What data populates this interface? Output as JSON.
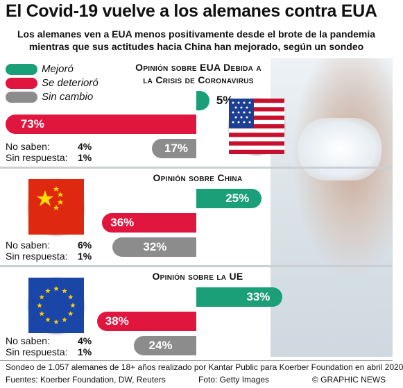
{
  "header": {
    "title": "El Covid-19 vuelve a los alemanes contra EUA",
    "subtitle_line1": "Los alemanes ven a EUA menos positivamente desde el brote de la pandemia",
    "subtitle_line2": "mientras que sus actitudes hacia China han mejorado, según un sondeo"
  },
  "legend": {
    "improved": "Mejoró",
    "worsened": "Se deterioró",
    "unchanged": "Sin cambio"
  },
  "colors": {
    "improved": "#1a9f78",
    "worsened": "#e0163f",
    "unchanged": "#8c8c8c"
  },
  "no_answer_labels": {
    "dont_know": "No saben:",
    "no_response": "Sin respuesta:"
  },
  "chart_data": [
    {
      "type": "bar",
      "title": "Opinión sobre EUA Debida a la Crisis de Coronavirus",
      "title_line1": "Opinión sobre EUA Debida a",
      "title_line2": "la Crisis de Coronavirus",
      "series": [
        {
          "name": "Mejoró",
          "value": 5,
          "label": "5%"
        },
        {
          "name": "Se deterioró",
          "value": 73,
          "label": "73%"
        },
        {
          "name": "Sin cambio",
          "value": 17,
          "label": "17%"
        }
      ],
      "dont_know": "4%",
      "no_response": "1%",
      "flag": "usa-flag"
    },
    {
      "type": "bar",
      "title": "Opinión sobre China",
      "series": [
        {
          "name": "Mejoró",
          "value": 25,
          "label": "25%"
        },
        {
          "name": "Se deterioró",
          "value": 36,
          "label": "36%"
        },
        {
          "name": "Sin cambio",
          "value": 32,
          "label": "32%"
        }
      ],
      "dont_know": "6%",
      "no_response": "1%",
      "flag": "china-flag"
    },
    {
      "type": "bar",
      "title": "Opinión sobre la UE",
      "series": [
        {
          "name": "Mejoró",
          "value": 33,
          "label": "33%"
        },
        {
          "name": "Se deterioró",
          "value": 38,
          "label": "38%"
        },
        {
          "name": "Sin cambio",
          "value": 24,
          "label": "24%"
        }
      ],
      "dont_know": "4%",
      "no_response": "1%",
      "flag": "eu-flag"
    }
  ],
  "footer": {
    "note": "Sondeo de 1.057 alemanes de 18+ años realizado por Kantar Public para Koerber Foundation en abril 2020",
    "sources": "Fuentes: Koerber Foundation, DW, Reuters",
    "photo": "Foto: Getty Images",
    "credit": "© GRAPHIC NEWS"
  }
}
